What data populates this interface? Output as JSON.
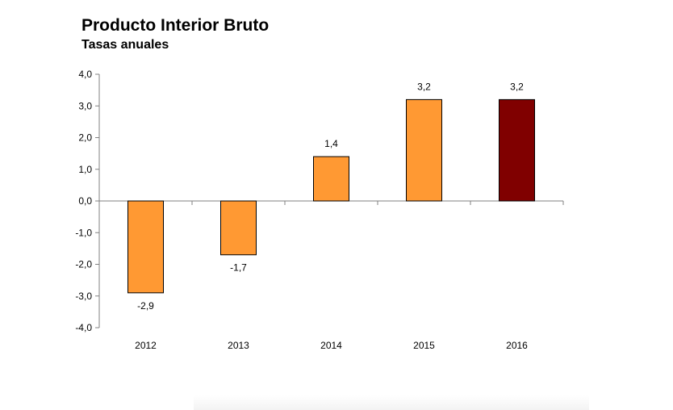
{
  "chart_data": {
    "type": "bar",
    "title": "Producto Interior Bruto",
    "subtitle": "Tasas anuales",
    "categories": [
      "2012",
      "2013",
      "2014",
      "2015",
      "2016"
    ],
    "values": [
      -2.9,
      -1.7,
      1.4,
      3.2,
      3.2
    ],
    "value_labels": [
      "-2,9",
      "-1,7",
      "1,4",
      "3,2",
      "3,2"
    ],
    "ylim": [
      -4.0,
      4.0
    ],
    "yticks": [
      4.0,
      3.0,
      2.0,
      1.0,
      0.0,
      -1.0,
      -2.0,
      -3.0,
      -4.0
    ],
    "ytick_labels": [
      "4,0",
      "3,0",
      "2,0",
      "1,0",
      "0,0",
      "-1,0",
      "-2,0",
      "-3,0",
      "-4,0"
    ],
    "colors": [
      "#ff9933",
      "#ff9933",
      "#ff9933",
      "#ff9933",
      "#800000"
    ],
    "grid": false,
    "legend": "none"
  }
}
